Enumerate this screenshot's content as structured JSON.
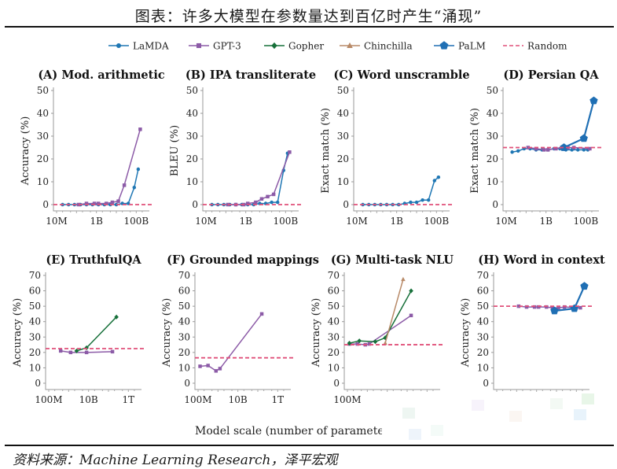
{
  "page_title": "图表：许多大模型在参数量达到百亿时产生“涌现”",
  "source": "资料来源：Machine Learning Research，泽平宏观",
  "x_axis_title": "Model scale (number of parameters)",
  "legend": [
    {
      "name": "LaMDA",
      "color": "#1f77b4",
      "marker": "circle"
    },
    {
      "name": "GPT-3",
      "color": "#8c5ba7",
      "marker": "square"
    },
    {
      "name": "Gopher",
      "color": "#17703a",
      "marker": "diamond"
    },
    {
      "name": "Chinchilla",
      "color": "#b88a68",
      "marker": "triangle"
    },
    {
      "name": "PaLM",
      "color": "#1f6fb4",
      "marker": "pentagon"
    },
    {
      "name": "Random",
      "color": "#e0507a",
      "marker": "dashed"
    }
  ],
  "chart_data": [
    {
      "type": "line",
      "title": "(A) Mod. arithmetic",
      "ylabel": "Accuracy (%)",
      "xlog": [
        7,
        11.5
      ],
      "ylim": [
        0,
        50
      ],
      "yticks": [
        0,
        10,
        20,
        30,
        40,
        50
      ],
      "xticks": [
        {
          "v": 7,
          "label": "10M"
        },
        {
          "v": 9,
          "label": "1B"
        },
        {
          "v": 11,
          "label": "100B"
        }
      ],
      "random": 0,
      "series": [
        {
          "name": "LaMDA",
          "x": [
            7.3,
            7.6,
            7.9,
            8.2,
            8.5,
            8.8,
            9.1,
            9.4,
            9.7,
            10,
            10.3,
            10.6,
            10.9,
            11.1
          ],
          "y": [
            0,
            0,
            0,
            0,
            0,
            0,
            0,
            0,
            0,
            0,
            0.5,
            0.5,
            7.5,
            15.5
          ]
        },
        {
          "name": "GPT-3",
          "x": [
            8.1,
            8.5,
            8.9,
            9.1,
            9.5,
            9.8,
            10.1,
            10.4,
            11.2
          ],
          "y": [
            0,
            0.5,
            0.5,
            0.5,
            0.5,
            1,
            1.5,
            8.5,
            33
          ]
        }
      ]
    },
    {
      "type": "line",
      "title": "(B) IPA transliterate",
      "ylabel": "BLEU (%)",
      "xlog": [
        7,
        11.5
      ],
      "ylim": [
        0,
        50
      ],
      "yticks": [
        0,
        10,
        20,
        30,
        40,
        50
      ],
      "xticks": [
        {
          "v": 7,
          "label": "10M"
        },
        {
          "v": 9,
          "label": "1B"
        },
        {
          "v": 11,
          "label": "100B"
        }
      ],
      "random": 0,
      "series": [
        {
          "name": "LaMDA",
          "x": [
            7.3,
            7.6,
            7.9,
            8.2,
            8.5,
            8.8,
            9.1,
            9.4,
            9.7,
            10,
            10.3,
            10.6,
            10.9,
            11.1
          ],
          "y": [
            0,
            0,
            0,
            0,
            0,
            0,
            0,
            0,
            0.5,
            0.5,
            1,
            1,
            15,
            22.5
          ]
        },
        {
          "name": "GPT-3",
          "x": [
            8.1,
            8.5,
            8.9,
            9.1,
            9.5,
            9.8,
            10.1,
            10.4,
            11.2
          ],
          "y": [
            0,
            0,
            0,
            0.5,
            1,
            2.5,
            3.5,
            4.5,
            23
          ]
        }
      ]
    },
    {
      "type": "line",
      "title": "(C) Word unscramble",
      "ylabel": "Exact match (%)",
      "xlog": [
        7,
        11.5
      ],
      "ylim": [
        0,
        50
      ],
      "yticks": [
        0,
        10,
        20,
        30,
        40,
        50
      ],
      "xticks": [
        {
          "v": 7,
          "label": "10M"
        },
        {
          "v": 9,
          "label": "1B"
        },
        {
          "v": 11,
          "label": "100B"
        }
      ],
      "random": 0,
      "series": [
        {
          "name": "LaMDA",
          "x": [
            7.3,
            7.6,
            7.9,
            8.2,
            8.5,
            8.8,
            9.1,
            9.4,
            9.7,
            10,
            10.3,
            10.6,
            10.9,
            11.1
          ],
          "y": [
            0,
            0,
            0,
            0,
            0,
            0,
            0,
            0.5,
            1,
            1,
            2,
            2,
            10.5,
            12
          ]
        }
      ]
    },
    {
      "type": "line",
      "title": "(D) Persian QA",
      "ylabel": "Exact match (%)",
      "xlog": [
        7,
        11.5
      ],
      "ylim": [
        0,
        50
      ],
      "yticks": [
        0,
        10,
        20,
        30,
        40,
        50
      ],
      "xticks": [
        {
          "v": 7,
          "label": "10M"
        },
        {
          "v": 9,
          "label": "1B"
        },
        {
          "v": 11,
          "label": "100B"
        }
      ],
      "random": 25,
      "series": [
        {
          "name": "LaMDA",
          "x": [
            7.3,
            7.6,
            7.9,
            8.2,
            8.5,
            8.8,
            9.1,
            9.4,
            9.7,
            10,
            10.3,
            10.6,
            10.9,
            11.1
          ],
          "y": [
            23,
            23.5,
            24.5,
            24.5,
            24,
            24,
            24,
            24.5,
            24.5,
            24,
            24,
            24,
            24,
            24
          ]
        },
        {
          "name": "GPT-3",
          "x": [
            8.1,
            8.5,
            8.9,
            9.1,
            9.5,
            9.8,
            10.1,
            10.4,
            11.2
          ],
          "y": [
            25,
            24.5,
            24,
            24,
            24.5,
            25,
            25,
            25,
            24.5
          ]
        },
        {
          "name": "PaLM",
          "x": [
            9.9,
            10.9,
            11.4
          ],
          "y": [
            25,
            29,
            45.5
          ]
        }
      ]
    },
    {
      "type": "line",
      "title": "(E) TruthfulQA",
      "ylabel": "Accuracy (%)",
      "xlog": [
        8,
        12.5
      ],
      "ylim": [
        0,
        70
      ],
      "yticks": [
        0,
        10,
        20,
        30,
        40,
        50,
        60,
        70
      ],
      "xticks": [
        {
          "v": 8,
          "label": "100M"
        },
        {
          "v": 10,
          "label": "10B"
        },
        {
          "v": 12,
          "label": "1T"
        }
      ],
      "random": 22.5,
      "series": [
        {
          "name": "GPT-3",
          "x": [
            8.6,
            9.1,
            9.9,
            11.2
          ],
          "y": [
            21,
            20,
            20,
            20.5
          ]
        },
        {
          "name": "Gopher",
          "x": [
            9.4,
            9.9,
            11.4
          ],
          "y": [
            21,
            23,
            43
          ]
        }
      ]
    },
    {
      "type": "line",
      "title": "(F) Grounded mappings",
      "ylabel": "Accuracy (%)",
      "xlog": [
        8,
        12.5
      ],
      "ylim": [
        0,
        70
      ],
      "yticks": [
        0,
        10,
        20,
        30,
        40,
        50,
        60,
        70
      ],
      "xticks": [
        {
          "v": 8,
          "label": "100M"
        },
        {
          "v": 10,
          "label": "10B"
        },
        {
          "v": 12,
          "label": "1T"
        }
      ],
      "random": 16.5,
      "series": [
        {
          "name": "GPT-3",
          "x": [
            8.1,
            8.5,
            8.9,
            9.1,
            11.2
          ],
          "y": [
            11,
            11.5,
            8,
            9.5,
            45
          ]
        }
      ]
    },
    {
      "type": "line",
      "title": "(G) Multi-task NLU",
      "ylabel": "Accuracy (%)",
      "xlog": [
        8,
        12.5
      ],
      "ylim": [
        0,
        70
      ],
      "yticks": [
        0,
        10,
        20,
        30,
        40,
        50,
        60,
        70
      ],
      "xticks": [
        {
          "v": 8,
          "label": "100M"
        }
      ],
      "random": 25,
      "series": [
        {
          "name": "GPT-3",
          "x": [
            8.1,
            8.5,
            8.9,
            9.1,
            11.2
          ],
          "y": [
            25.5,
            25.5,
            25,
            25.5,
            44
          ]
        },
        {
          "name": "Gopher",
          "x": [
            8.1,
            8.6,
            9.4,
            9.9,
            11.2
          ],
          "y": [
            26,
            27.5,
            27,
            29.5,
            60
          ]
        },
        {
          "name": "Chinchilla",
          "x": [
            9.9,
            10.8
          ],
          "y": [
            26,
            67.5
          ]
        }
      ]
    },
    {
      "type": "line",
      "title": "(H) Word in context",
      "ylabel": "Accuracy (%)",
      "xlog": [
        7,
        11.5
      ],
      "ylim": [
        0,
        70
      ],
      "yticks": [
        0,
        10,
        20,
        30,
        40,
        50,
        60,
        70
      ],
      "xticks": [],
      "random": 50,
      "series": [
        {
          "name": "GPT-3",
          "x": [
            8.1,
            8.5,
            8.9,
            9.1,
            9.5,
            9.8,
            10.1,
            10.4,
            11.2
          ],
          "y": [
            50,
            49.5,
            49.5,
            49.5,
            49.5,
            49,
            49,
            49.5,
            49
          ]
        },
        {
          "name": "PaLM",
          "x": [
            9.9,
            10.9,
            11.4
          ],
          "y": [
            47,
            48.5,
            63
          ]
        }
      ]
    }
  ]
}
